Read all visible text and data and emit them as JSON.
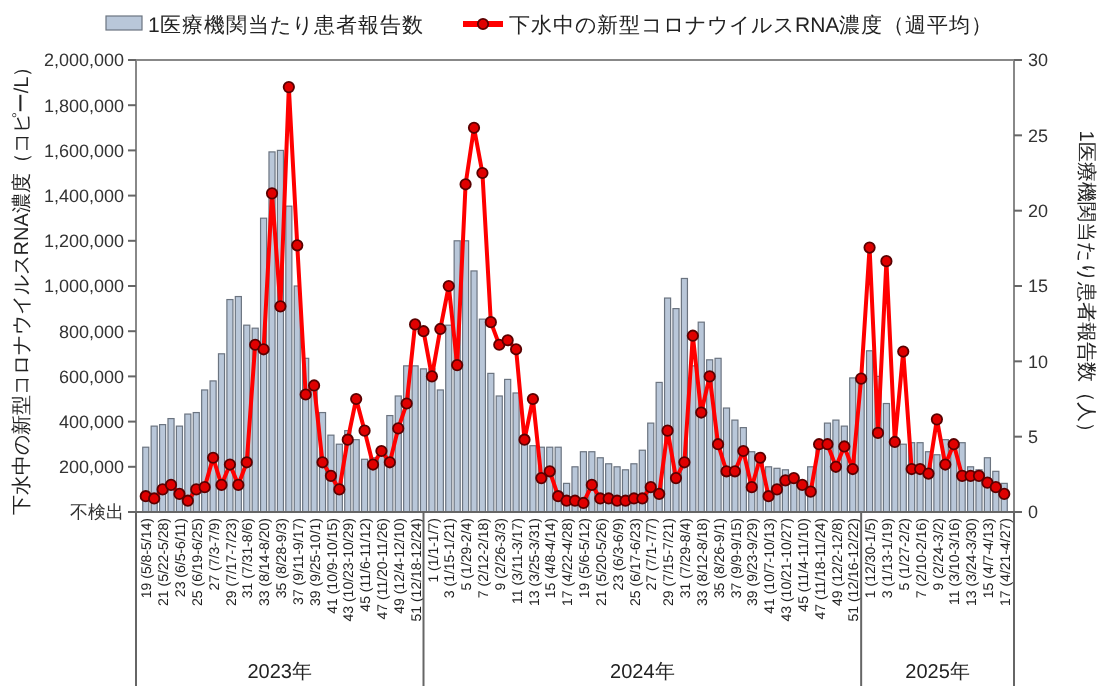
{
  "chart_data": {
    "type": "bar",
    "categories": [
      "19 (5/8-5/14)",
      null,
      "21 (5/22-5/28)",
      null,
      "23 (6/5-6/11)",
      null,
      "25 (6/19-6/25)",
      null,
      "27 (7/3-7/9)",
      null,
      "29 (7/17-7/23)",
      null,
      "31 (7/31-8/6)",
      null,
      "33 (8/14-8/20)",
      null,
      "35 (8/28-9/3)",
      null,
      "37 (9/11-9/17)",
      null,
      "39 (9/25-10/1)",
      null,
      "41 (10/9-10/15)",
      null,
      "43 (10/23-10/29)",
      null,
      "45 (11/6-11/12)",
      null,
      "47 (11/20-11/26)",
      null,
      "49 (12/4-12/10)",
      null,
      "51 (12/18-12/24)",
      null,
      "1 (1/1-1/7)",
      null,
      "3 (1/15-1/21)",
      null,
      "5 (1/29-2/4)",
      null,
      "7 (2/12-2/18)",
      null,
      "9 (2/26-3/3)",
      null,
      "11 (3/11-3/17)",
      null,
      "13 (3/25-3/31)",
      null,
      "15 (4/8-4/14)",
      null,
      "17 (4/22-4/28)",
      null,
      "19 (5/6-5/12)",
      null,
      "21 (5/20-5/26)",
      null,
      "23 (6/3-6/9)",
      null,
      "25 (6/17-6/23)",
      null,
      "27 (7/1-7/7)",
      null,
      "29 (7/15-7/21)",
      null,
      "31 (7/29-8/4)",
      null,
      "33 (8/12-8/18)",
      null,
      "35 (8/26-9/1)",
      null,
      "37 (9/9-9/15)",
      null,
      "39 (9/23-9/29)",
      null,
      "41 (10/7-10/13)",
      null,
      "43 (10/21-10/27)",
      null,
      "45 (11/4-11/10)",
      null,
      "47 (11/18-11/24)",
      null,
      "49 (12/2-12/8)",
      null,
      "51 (12/16-12/22)",
      null,
      "1 (12/30-1/5)",
      null,
      "3 (1/13-1/19)",
      null,
      "5 (1/27-2/2)",
      null,
      "7 (2/10-2/16)",
      null,
      "9 (2/24-3/2)",
      null,
      "11 (3/10-3/16)",
      null,
      "13 (3/24-3/30)",
      null,
      "15 (4/7-4/13)",
      null,
      "17 (4/21-4/27)"
    ],
    "series": [
      {
        "name": "1医療機関当たり患者報告数",
        "axis": "y2",
        "color": "#b9c7d9",
        "values": [
          4.3,
          5.7,
          5.8,
          6.2,
          5.7,
          6.5,
          6.6,
          8.1,
          8.7,
          10.5,
          14.1,
          14.3,
          12.4,
          12.2,
          19.5,
          23.9,
          24.0,
          20.3,
          15.0,
          10.2,
          8.4,
          6.6,
          5.1,
          4.5,
          5.4,
          4.8,
          3.5,
          3.6,
          4.1,
          6.4,
          7.7,
          9.7,
          9.7,
          9.5,
          9.5,
          8.1,
          12.4,
          18.0,
          18.0,
          16.0,
          12.8,
          9.2,
          7.7,
          8.8,
          7.9,
          4.8,
          4.4,
          4.3,
          4.3,
          4.3,
          1.9,
          3.0,
          4.0,
          4.0,
          3.6,
          3.2,
          3.0,
          2.8,
          3.2,
          4.1,
          5.9,
          8.6,
          14.2,
          13.5,
          15.5,
          9.7,
          12.6,
          10.1,
          10.2,
          6.9,
          6.1,
          5.6,
          4.0,
          3.7,
          3.0,
          2.9,
          2.8,
          2.1,
          1.9,
          3.0,
          4.6,
          5.9,
          6.1,
          5.7,
          8.9,
          8.9,
          10.7,
          9.0,
          7.2,
          4.9,
          4.5,
          4.6,
          4.6,
          4.0,
          3.8,
          4.8,
          4.4,
          4.6,
          3.0,
          2.8,
          3.6,
          2.7,
          1.9
        ]
      },
      {
        "name": "下水中の新型コロナウイルスRNA濃度（週平均）",
        "type": "line",
        "axis": "y",
        "color": "#ff0000",
        "marker": "circle",
        "values": [
          70000,
          60000,
          100000,
          120000,
          80000,
          50000,
          100000,
          110000,
          240000,
          120000,
          210000,
          120000,
          220000,
          740000,
          720000,
          1410000,
          910000,
          1880000,
          1180000,
          520000,
          560000,
          220000,
          160000,
          100000,
          320000,
          500000,
          360000,
          210000,
          270000,
          220000,
          370000,
          480000,
          830000,
          800000,
          600000,
          810000,
          1000000,
          650000,
          1450000,
          1700000,
          1500000,
          840000,
          740000,
          760000,
          720000,
          320000,
          500000,
          150000,
          180000,
          70000,
          50000,
          50000,
          40000,
          120000,
          60000,
          60000,
          50000,
          50000,
          60000,
          60000,
          110000,
          80000,
          360000,
          150000,
          220000,
          780000,
          440000,
          600000,
          300000,
          180000,
          180000,
          270000,
          110000,
          240000,
          70000,
          100000,
          140000,
          150000,
          120000,
          90000,
          300000,
          300000,
          200000,
          290000,
          190000,
          590000,
          1170000,
          350000,
          1110000,
          310000,
          710000,
          190000,
          190000,
          170000,
          410000,
          210000,
          300000,
          160000,
          160000,
          160000,
          130000,
          110000,
          80000
        ]
      }
    ],
    "ylabel": "下水中の新型コロナウイルスRNA濃度（コピー/L）",
    "y2label": "1医療機関当たり患者報告数（人）",
    "ylim": [
      0,
      2000000
    ],
    "yticks": [
      {
        "value": 0,
        "label": "不検出"
      },
      {
        "value": 200000,
        "label": "200,000"
      },
      {
        "value": 400000,
        "label": "400,000"
      },
      {
        "value": 600000,
        "label": "600,000"
      },
      {
        "value": 800000,
        "label": "800,000"
      },
      {
        "value": 1000000,
        "label": "1,000,000"
      },
      {
        "value": 1200000,
        "label": "1,200,000"
      },
      {
        "value": 1400000,
        "label": "1,400,000"
      },
      {
        "value": 1600000,
        "label": "1,600,000"
      },
      {
        "value": 1800000,
        "label": "1,800,000"
      },
      {
        "value": 2000000,
        "label": "2,000,000"
      }
    ],
    "y2lim": [
      0,
      30
    ],
    "y2ticks": [
      0,
      5,
      10,
      15,
      20,
      25,
      30
    ],
    "annotations": [
      "2023年",
      "2024年",
      "2025年"
    ],
    "legend": "top",
    "grid": false,
    "line_style": "solid"
  }
}
